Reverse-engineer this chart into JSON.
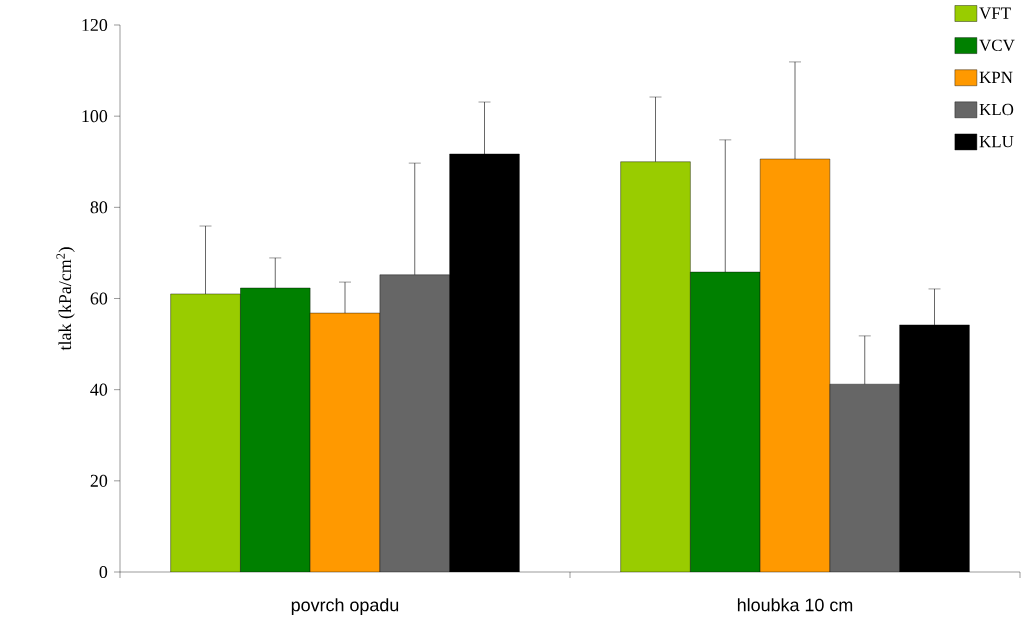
{
  "chart_data": {
    "type": "bar",
    "ylabel": "tlak  (kPa/cm$^{2}$)",
    "categories": [
      "povrch opadu",
      "hloubka 10 cm"
    ],
    "series": [
      {
        "name": "VFT",
        "color": "#99cc00",
        "values": [
          61.0,
          90.0
        ],
        "errors": [
          [
            61.0,
            75.9
          ],
          [
            90.0,
            104.2
          ]
        ]
      },
      {
        "name": "VCV",
        "color": "#008000",
        "values": [
          62.3,
          65.8
        ],
        "errors": [
          [
            62.3,
            68.9
          ],
          [
            65.8,
            94.8
          ]
        ]
      },
      {
        "name": "KPN",
        "color": "#ff9900",
        "values": [
          56.8,
          90.6
        ],
        "errors": [
          [
            56.8,
            63.6
          ],
          [
            90.6,
            111.9
          ]
        ]
      },
      {
        "name": "KLO",
        "color": "#666666",
        "values": [
          65.2,
          41.2
        ],
        "errors": [
          [
            65.2,
            89.7
          ],
          [
            41.2,
            51.8
          ]
        ]
      },
      {
        "name": "KLU",
        "color": "#000000",
        "values": [
          91.7,
          54.2
        ],
        "errors": [
          [
            91.7,
            103.1
          ],
          [
            54.2,
            62.1
          ]
        ]
      }
    ],
    "ylim": [
      0,
      120
    ],
    "yticks": [
      0,
      20,
      40,
      60,
      80,
      100,
      120
    ],
    "grid": false,
    "legend": "top right"
  }
}
